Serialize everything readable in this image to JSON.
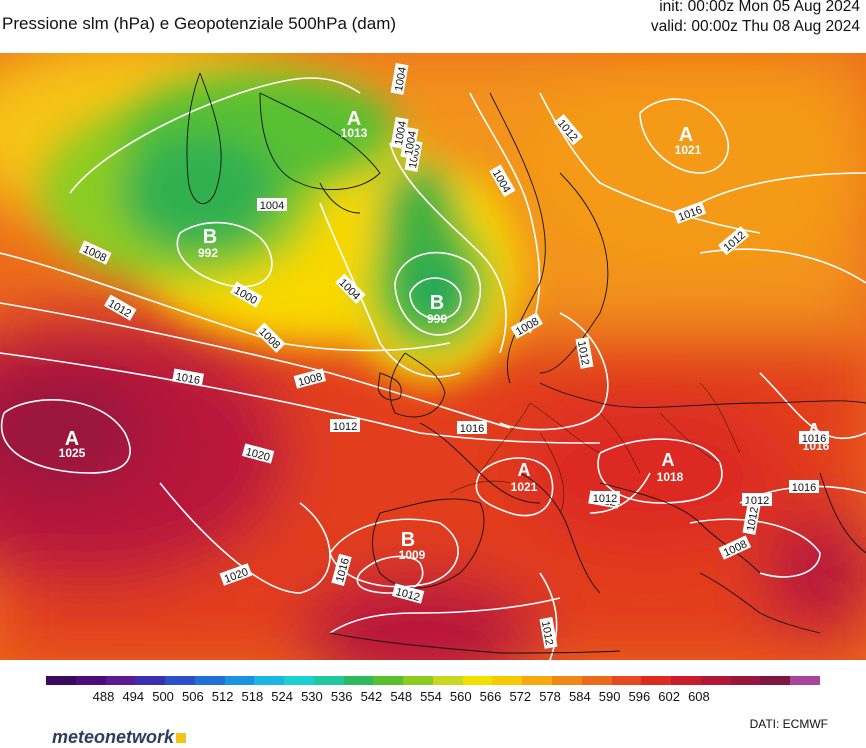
{
  "title": "Pressione slm (hPa) e Geopotenziale 500hPa (dam)",
  "init": "init: 00:00z Mon 05 Aug 2024",
  "valid": "valid: 00:00z Thu 08 Aug 2024",
  "colorbar": {
    "ticks": [
      "488",
      "494",
      "500",
      "506",
      "512",
      "518",
      "524",
      "530",
      "536",
      "542",
      "548",
      "554",
      "560",
      "566",
      "572",
      "578",
      "584",
      "590",
      "596",
      "602",
      "608"
    ],
    "colors": [
      "#3a0a5e",
      "#4b0d7a",
      "#5a1a96",
      "#3b2fb0",
      "#2a4fc8",
      "#2070d8",
      "#1a94e0",
      "#18b6e0",
      "#1ad0d0",
      "#20c8a0",
      "#30b860",
      "#58c030",
      "#8ccc20",
      "#c8d820",
      "#f0e000",
      "#f8c800",
      "#f8a810",
      "#f08818",
      "#ec6a1c",
      "#e64a20",
      "#dc2c20",
      "#c81e2c",
      "#b01838",
      "#98163e",
      "#80163e",
      "#a8449c"
    ]
  },
  "pressure_centers": [
    {
      "type": "A",
      "value": "1025"
    },
    {
      "type": "B",
      "value": "992"
    },
    {
      "type": "B",
      "value": "990"
    },
    {
      "type": "A",
      "value": "1013"
    },
    {
      "type": "A",
      "value": "1021"
    },
    {
      "type": "A",
      "value": "1021"
    },
    {
      "type": "A",
      "value": "1018"
    },
    {
      "type": "A",
      "value": "1016"
    },
    {
      "type": "B",
      "value": "1009"
    }
  ],
  "isobar_labels": [
    "1004",
    "1004",
    "1000",
    "1008",
    "1008",
    "1012",
    "1004",
    "1016",
    "1000",
    "1004",
    "1008",
    "1004",
    "1012",
    "1016",
    "1020",
    "1012",
    "1016",
    "1020",
    "1016",
    "1012",
    "1012",
    "1012",
    "1012",
    "1008",
    "1012",
    "1016",
    "1012",
    "1012",
    "1008",
    "1016",
    "1012",
    "1004"
  ],
  "logo": "meteonetwork",
  "source": "DATI:  ECMWF"
}
